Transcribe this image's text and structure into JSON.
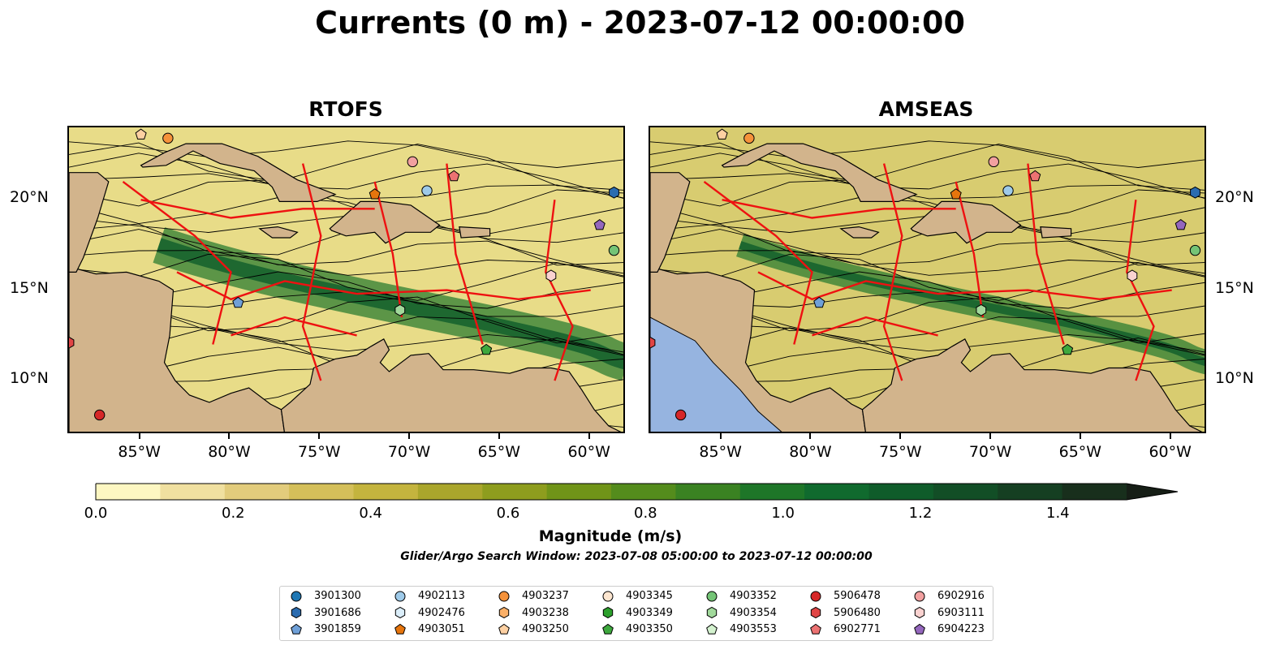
{
  "figure": {
    "title": "Currents (0 m) - 2023-07-12 00:00:00"
  },
  "panels": [
    {
      "title": "RTOFS",
      "ocean_color": "#e8dc88"
    },
    {
      "title": "AMSEAS",
      "ocean_color": "#d8cc70"
    }
  ],
  "axes": {
    "lon_ticks": [
      "85°W",
      "80°W",
      "75°W",
      "70°W",
      "65°W",
      "60°W"
    ],
    "lat_ticks": [
      "20°N",
      "15°N",
      "10°N"
    ],
    "lon_range": [
      -89,
      -58
    ],
    "lat_range": [
      7,
      24
    ],
    "lon_values": [
      -85,
      -80,
      -75,
      -70,
      -65,
      -60
    ],
    "lat_values": [
      20,
      15,
      10
    ]
  },
  "colorbar": {
    "label": "Magnitude (m/s)",
    "ticks": [
      "0.0",
      "0.2",
      "0.4",
      "0.6",
      "0.8",
      "1.0",
      "1.2",
      "1.4"
    ],
    "range": [
      0,
      1.5
    ],
    "extend": "max",
    "colors": [
      "#fdf7c2",
      "#f0e0a0",
      "#e2cc7c",
      "#d4bf5a",
      "#c4b43e",
      "#aaa62c",
      "#8e9d1e",
      "#709418",
      "#548c1c",
      "#3a8222",
      "#1e7628",
      "#106a2e",
      "#0f5c2a",
      "#124e26",
      "#153f22",
      "#182f1c"
    ]
  },
  "subtitle": {
    "search_window": "Glider/Argo Search Window: 2023-07-08 05:00:00 to 2023-07-12 00:00:00"
  },
  "legend": {
    "columns": [
      [
        {
          "label": "3901300",
          "marker": "circle",
          "color": "#1f77b4"
        },
        {
          "label": "3901686",
          "marker": "hexagon",
          "color": "#2b6cb0"
        },
        {
          "label": "3901859",
          "marker": "pentagon",
          "color": "#6fa0d8"
        }
      ],
      [
        {
          "label": "4902113",
          "marker": "circle",
          "color": "#9ecae9"
        },
        {
          "label": "4902476",
          "marker": "hexagon",
          "color": "#dbeefa"
        },
        {
          "label": "4903051",
          "marker": "pentagon",
          "color": "#e6750d"
        }
      ],
      [
        {
          "label": "4903237",
          "marker": "circle",
          "color": "#f5923a"
        },
        {
          "label": "4903238",
          "marker": "hexagon",
          "color": "#fbb068"
        },
        {
          "label": "4903250",
          "marker": "pentagon",
          "color": "#fdd0a2"
        }
      ],
      [
        {
          "label": "4903345",
          "marker": "circle",
          "color": "#fde6d0"
        },
        {
          "label": "4903349",
          "marker": "hexagon",
          "color": "#2ca02c"
        },
        {
          "label": "4903350",
          "marker": "pentagon",
          "color": "#3ea83e"
        }
      ],
      [
        {
          "label": "4903352",
          "marker": "circle",
          "color": "#74c476"
        },
        {
          "label": "4903354",
          "marker": "hexagon",
          "color": "#a1d99b"
        },
        {
          "label": "4903553",
          "marker": "pentagon",
          "color": "#d4f2cf"
        }
      ],
      [
        {
          "label": "5906478",
          "marker": "circle",
          "color": "#d62728"
        },
        {
          "label": "5906480",
          "marker": "hexagon",
          "color": "#e04545"
        },
        {
          "label": "6902771",
          "marker": "pentagon",
          "color": "#ec7272"
        }
      ],
      [
        {
          "label": "6902916",
          "marker": "circle",
          "color": "#f2a0a0"
        },
        {
          "label": "6903111",
          "marker": "hexagon",
          "color": "#fad2d0"
        },
        {
          "label": "6904223",
          "marker": "pentagon",
          "color": "#9467bd"
        }
      ]
    ]
  },
  "markers_on_map": [
    {
      "id": "6904223",
      "lon": -59.5,
      "lat": 18.6
    },
    {
      "id": "3901686",
      "lon": -58.7,
      "lat": 20.4
    },
    {
      "id": "4903352",
      "lon": -58.7,
      "lat": 17.2
    },
    {
      "id": "4902113",
      "lon": -69.1,
      "lat": 20.5
    },
    {
      "id": "6902916",
      "lon": -69.9,
      "lat": 22.1
    },
    {
      "id": "6902771",
      "lon": -67.6,
      "lat": 21.3
    },
    {
      "id": "4903051",
      "lon": -72.0,
      "lat": 20.3
    },
    {
      "id": "4903237",
      "lon": -83.5,
      "lat": 23.4
    },
    {
      "id": "4903250",
      "lon": -85.0,
      "lat": 23.6
    },
    {
      "id": "3901859",
      "lon": -79.6,
      "lat": 14.3
    },
    {
      "id": "4903354",
      "lon": -70.6,
      "lat": 13.9
    },
    {
      "id": "4903350",
      "lon": -65.8,
      "lat": 11.7
    },
    {
      "id": "6903111",
      "lon": -62.2,
      "lat": 15.8
    },
    {
      "id": "5906478",
      "lon": -87.3,
      "lat": 8.1
    },
    {
      "id": "5906480",
      "lon": -89.0,
      "lat": 12.1
    }
  ],
  "land_polygons": [
    {
      "name": "central-america",
      "points": [
        [
          -89,
          16.3
        ],
        [
          -87.5,
          15.9
        ],
        [
          -85.8,
          16.0
        ],
        [
          -84.0,
          15.5
        ],
        [
          -83.2,
          15.0
        ],
        [
          -83.4,
          12.5
        ],
        [
          -83.7,
          11.0
        ],
        [
          -83.1,
          10.0
        ],
        [
          -82.3,
          9.2
        ],
        [
          -81.2,
          8.8
        ],
        [
          -80.0,
          9.3
        ],
        [
          -79.0,
          9.6
        ],
        [
          -77.8,
          8.7
        ],
        [
          -77.2,
          8.4
        ],
        [
          -77.0,
          7.0
        ],
        [
          -89,
          7.0
        ]
      ]
    },
    {
      "name": "south-america",
      "points": [
        [
          -77.2,
          8.4
        ],
        [
          -76.7,
          8.8
        ],
        [
          -75.6,
          9.8
        ],
        [
          -75.4,
          10.7
        ],
        [
          -74.2,
          11.2
        ],
        [
          -73.0,
          11.4
        ],
        [
          -72.2,
          11.9
        ],
        [
          -71.5,
          12.3
        ],
        [
          -71.2,
          11.7
        ],
        [
          -71.7,
          11.0
        ],
        [
          -71.2,
          10.5
        ],
        [
          -70.0,
          11.4
        ],
        [
          -69.0,
          11.5
        ],
        [
          -68.2,
          10.6
        ],
        [
          -66.5,
          10.6
        ],
        [
          -64.5,
          10.4
        ],
        [
          -63.5,
          10.7
        ],
        [
          -62.2,
          10.7
        ],
        [
          -61.2,
          10.5
        ],
        [
          -60.5,
          9.5
        ],
        [
          -59.8,
          8.4
        ],
        [
          -59.0,
          7.5
        ],
        [
          -58.0,
          7.0
        ],
        [
          -77.0,
          7.0
        ]
      ]
    },
    {
      "name": "cuba",
      "points": [
        [
          -85.0,
          21.9
        ],
        [
          -83.7,
          22.6
        ],
        [
          -82.5,
          23.1
        ],
        [
          -80.5,
          23.1
        ],
        [
          -78.5,
          22.4
        ],
        [
          -76.3,
          21.1
        ],
        [
          -74.2,
          20.3
        ],
        [
          -75.2,
          19.9
        ],
        [
          -77.3,
          19.9
        ],
        [
          -77.7,
          20.7
        ],
        [
          -78.7,
          21.6
        ],
        [
          -80.6,
          22.0
        ],
        [
          -82.1,
          22.7
        ],
        [
          -83.6,
          21.9
        ],
        [
          -84.9,
          21.8
        ]
      ]
    },
    {
      "name": "hispaniola",
      "points": [
        [
          -74.5,
          18.4
        ],
        [
          -72.8,
          19.9
        ],
        [
          -71.6,
          19.9
        ],
        [
          -70.0,
          19.7
        ],
        [
          -68.4,
          18.6
        ],
        [
          -68.9,
          18.2
        ],
        [
          -70.3,
          18.2
        ],
        [
          -71.4,
          17.6
        ],
        [
          -72.0,
          18.2
        ],
        [
          -73.6,
          18.0
        ],
        [
          -74.4,
          18.3
        ]
      ]
    },
    {
      "name": "jamaica",
      "points": [
        [
          -78.4,
          18.4
        ],
        [
          -77.4,
          18.5
        ],
        [
          -76.3,
          18.2
        ],
        [
          -76.7,
          17.9
        ],
        [
          -77.7,
          17.9
        ]
      ]
    },
    {
      "name": "puerto-rico",
      "points": [
        [
          -67.3,
          18.5
        ],
        [
          -65.6,
          18.4
        ],
        [
          -65.6,
          18.0
        ],
        [
          -67.2,
          17.9
        ]
      ]
    },
    {
      "name": "yucatan",
      "points": [
        [
          -89,
          21.5
        ],
        [
          -87.4,
          21.5
        ],
        [
          -86.8,
          21.0
        ],
        [
          -87.4,
          19.0
        ],
        [
          -88.2,
          16.8
        ],
        [
          -88.6,
          16.0
        ],
        [
          -89,
          16.0
        ]
      ]
    }
  ]
}
